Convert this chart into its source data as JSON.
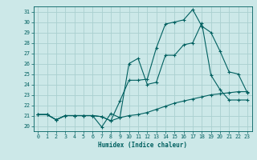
{
  "xlabel": "Humidex (Indice chaleur)",
  "bg_color": "#cce8e8",
  "line_color": "#006060",
  "grid_color": "#aad0d0",
  "xlim": [
    -0.5,
    23.5
  ],
  "ylim": [
    19.5,
    31.5
  ],
  "xticks": [
    0,
    1,
    2,
    3,
    4,
    5,
    6,
    7,
    8,
    9,
    10,
    11,
    12,
    13,
    14,
    15,
    16,
    17,
    18,
    19,
    20,
    21,
    22,
    23
  ],
  "yticks": [
    20,
    21,
    22,
    23,
    24,
    25,
    26,
    27,
    28,
    29,
    30,
    31
  ],
  "line1_x": [
    0,
    1,
    2,
    3,
    4,
    5,
    6,
    7,
    8,
    9,
    10,
    11,
    12,
    13,
    14,
    15,
    16,
    17,
    18,
    19,
    20,
    21,
    22,
    23
  ],
  "line1_y": [
    21.1,
    21.1,
    20.6,
    21.0,
    21.0,
    21.0,
    21.0,
    20.9,
    20.5,
    20.8,
    21.0,
    21.1,
    21.3,
    21.6,
    21.9,
    22.2,
    22.4,
    22.6,
    22.8,
    23.0,
    23.1,
    23.2,
    23.3,
    23.3
  ],
  "line2_x": [
    0,
    1,
    2,
    3,
    4,
    5,
    6,
    7,
    8,
    9,
    10,
    11,
    12,
    13,
    14,
    15,
    16,
    17,
    18,
    19,
    20,
    21,
    22,
    23
  ],
  "line2_y": [
    21.1,
    21.1,
    20.6,
    21.0,
    21.0,
    21.0,
    21.0,
    20.9,
    20.5,
    22.4,
    24.4,
    24.4,
    24.5,
    27.5,
    29.8,
    30.0,
    30.2,
    31.2,
    29.6,
    29.0,
    27.2,
    25.2,
    25.0,
    23.2
  ],
  "line3_x": [
    0,
    1,
    2,
    3,
    4,
    5,
    6,
    7,
    8,
    9,
    10,
    11,
    12,
    13,
    14,
    15,
    16,
    17,
    18,
    19,
    20,
    21,
    22,
    23
  ],
  "line3_y": [
    21.1,
    21.1,
    20.6,
    21.0,
    21.0,
    21.0,
    21.0,
    19.9,
    21.2,
    20.8,
    26.0,
    26.5,
    24.0,
    24.2,
    26.8,
    26.8,
    27.8,
    28.0,
    29.9,
    24.9,
    23.5,
    22.5,
    22.5,
    22.5
  ]
}
